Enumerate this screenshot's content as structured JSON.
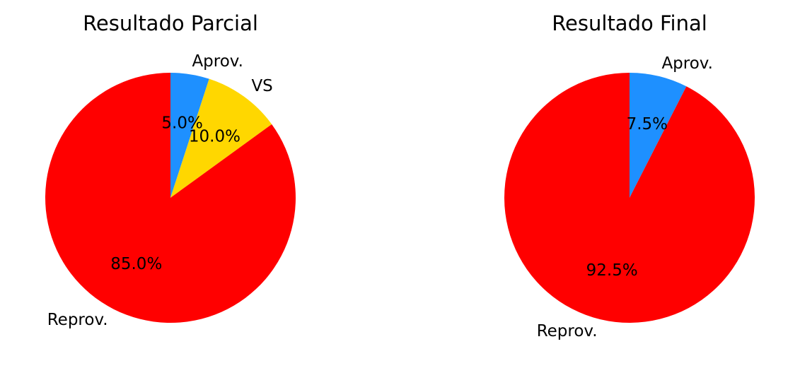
{
  "chart_data": [
    {
      "type": "pie",
      "title": "Resultado Parcial",
      "labels": [
        "Aprov.",
        "VS",
        "Reprov."
      ],
      "values": [
        5.0,
        10.0,
        85.0
      ],
      "pct_labels": [
        "5.0%",
        "10.0%",
        "85.0%"
      ],
      "colors": [
        "#1E90FF",
        "#FFD700",
        "#FF0000"
      ],
      "start_angle_deg": 90,
      "direction": "clockwise"
    },
    {
      "type": "pie",
      "title": "Resultado Final",
      "labels": [
        "Aprov.",
        "Reprov."
      ],
      "values": [
        7.5,
        92.5
      ],
      "pct_labels": [
        "7.5%",
        "92.5%"
      ],
      "colors": [
        "#1E90FF",
        "#FF0000"
      ],
      "start_angle_deg": 90,
      "direction": "clockwise"
    }
  ]
}
